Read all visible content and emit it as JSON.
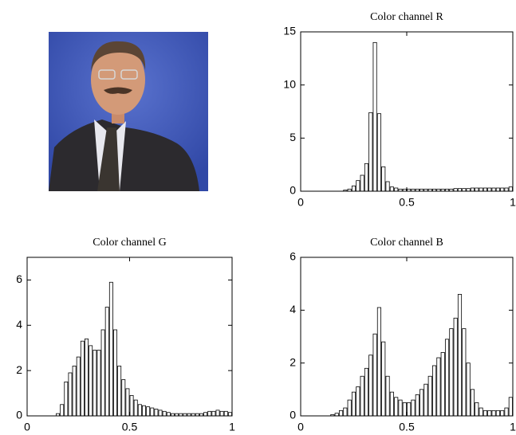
{
  "chart_data": [
    {
      "type": "histogram",
      "title": "Color channel R",
      "color": "#ffffff",
      "bins": [
        0,
        0.02,
        0.04,
        0.06,
        0.08,
        0.1,
        0.12,
        0.14,
        0.16,
        0.18,
        0.2,
        0.22,
        0.24,
        0.26,
        0.28,
        0.3,
        0.32,
        0.34,
        0.36,
        0.38,
        0.4,
        0.42,
        0.44,
        0.46,
        0.48,
        0.5,
        0.52,
        0.54,
        0.56,
        0.58,
        0.6,
        0.62,
        0.64,
        0.66,
        0.68,
        0.7,
        0.72,
        0.74,
        0.76,
        0.78,
        0.8,
        0.82,
        0.84,
        0.86,
        0.88,
        0.9,
        0.92,
        0.94,
        0.96,
        0.98,
        1
      ],
      "values": [
        0,
        0,
        0,
        0,
        0,
        0,
        0,
        0,
        0,
        0,
        0.1,
        0.2,
        0.5,
        1,
        1.5,
        2.6,
        7.4,
        14,
        7.3,
        2.3,
        0.9,
        0.4,
        0.3,
        0.2,
        0.2,
        0.2,
        0.2,
        0.2,
        0.2,
        0.2,
        0.2,
        0.2,
        0.2,
        0.2,
        0.2,
        0.2,
        0.25,
        0.25,
        0.25,
        0.25,
        0.3,
        0.3,
        0.3,
        0.3,
        0.3,
        0.3,
        0.3,
        0.3,
        0.3,
        0.4
      ],
      "xlim": [
        0,
        1
      ],
      "xticks": [
        0,
        0.5,
        1
      ],
      "ylim": [
        0,
        15
      ],
      "yticks": [
        0,
        5,
        10,
        15
      ]
    },
    {
      "type": "histogram",
      "title": "Color channel G",
      "color": "#ffffff",
      "bins": [
        0,
        0.02,
        0.04,
        0.06,
        0.08,
        0.1,
        0.12,
        0.14,
        0.16,
        0.18,
        0.2,
        0.22,
        0.24,
        0.26,
        0.28,
        0.3,
        0.32,
        0.34,
        0.36,
        0.38,
        0.4,
        0.42,
        0.44,
        0.46,
        0.48,
        0.5,
        0.52,
        0.54,
        0.56,
        0.58,
        0.6,
        0.62,
        0.64,
        0.66,
        0.68,
        0.7,
        0.72,
        0.74,
        0.76,
        0.78,
        0.8,
        0.82,
        0.84,
        0.86,
        0.88,
        0.9,
        0.92,
        0.94,
        0.96,
        0.98,
        1
      ],
      "values": [
        0,
        0,
        0,
        0,
        0,
        0,
        0,
        0.1,
        0.5,
        1.5,
        1.9,
        2.2,
        2.6,
        3.3,
        3.4,
        3.1,
        2.9,
        2.9,
        3.8,
        4.8,
        5.9,
        3.8,
        2.2,
        1.6,
        1.2,
        0.9,
        0.7,
        0.5,
        0.45,
        0.4,
        0.35,
        0.3,
        0.25,
        0.2,
        0.15,
        0.1,
        0.1,
        0.1,
        0.1,
        0.1,
        0.1,
        0.1,
        0.1,
        0.15,
        0.2,
        0.2,
        0.25,
        0.2,
        0.2,
        0.15
      ],
      "xlim": [
        0,
        1
      ],
      "xticks": [
        0,
        0.5,
        1
      ],
      "ylim": [
        0,
        7
      ],
      "yticks": [
        0,
        2,
        4,
        6
      ]
    },
    {
      "type": "histogram",
      "title": "Color channel B",
      "color": "#ffffff",
      "bins": [
        0,
        0.02,
        0.04,
        0.06,
        0.08,
        0.1,
        0.12,
        0.14,
        0.16,
        0.18,
        0.2,
        0.22,
        0.24,
        0.26,
        0.28,
        0.3,
        0.32,
        0.34,
        0.36,
        0.38,
        0.4,
        0.42,
        0.44,
        0.46,
        0.48,
        0.5,
        0.52,
        0.54,
        0.56,
        0.58,
        0.6,
        0.62,
        0.64,
        0.66,
        0.68,
        0.7,
        0.72,
        0.74,
        0.76,
        0.78,
        0.8,
        0.82,
        0.84,
        0.86,
        0.88,
        0.9,
        0.92,
        0.94,
        0.96,
        0.98,
        1
      ],
      "values": [
        0,
        0,
        0,
        0,
        0,
        0,
        0,
        0.05,
        0.1,
        0.2,
        0.3,
        0.6,
        0.9,
        1.1,
        1.5,
        1.8,
        2.3,
        3.1,
        4.1,
        2.8,
        1.5,
        0.9,
        0.7,
        0.6,
        0.5,
        0.5,
        0.6,
        0.8,
        1,
        1.2,
        1.5,
        1.9,
        2.2,
        2.4,
        2.9,
        3.3,
        3.7,
        4.6,
        3.3,
        2,
        1,
        0.5,
        0.3,
        0.2,
        0.2,
        0.2,
        0.2,
        0.2,
        0.3,
        0.7
      ],
      "xlim": [
        0,
        1
      ],
      "xticks": [
        0,
        0.5,
        1
      ],
      "ylim": [
        0,
        6
      ],
      "yticks": [
        0,
        2,
        4,
        6
      ]
    }
  ]
}
